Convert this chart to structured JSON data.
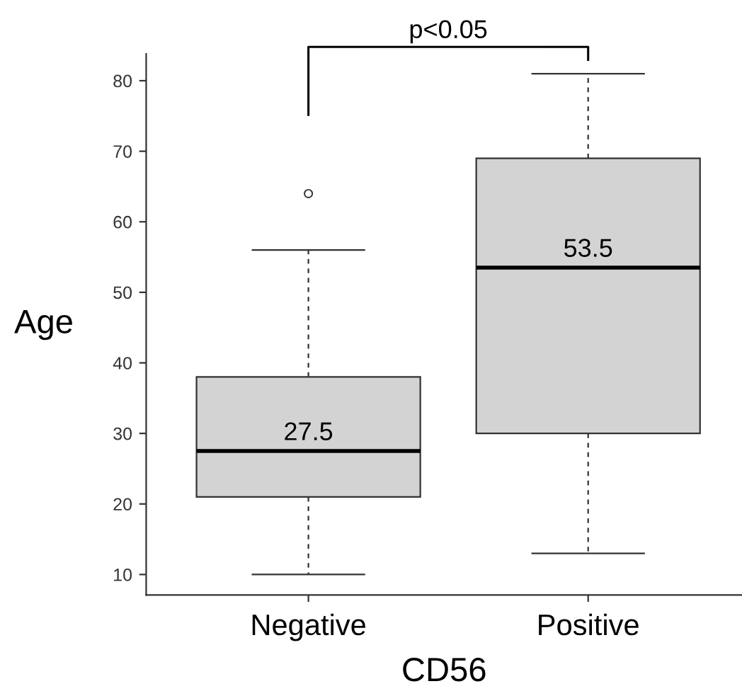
{
  "chart_data": {
    "type": "box",
    "xlabel": "CD56",
    "ylabel": "Age",
    "categories": [
      "Negative",
      "Positive"
    ],
    "boxes": [
      {
        "low": 10,
        "q1": 21,
        "median": 27.5,
        "q3": 38,
        "high": 56,
        "outliers": [
          64
        ]
      },
      {
        "low": 13,
        "q1": 30,
        "median": 53.5,
        "q3": 69,
        "high": 81
      }
    ],
    "color": "#d3d3d3",
    "ylim": [
      7.1,
      83.8
    ],
    "yticks": [
      10,
      20,
      30,
      40,
      50,
      60,
      70,
      80
    ],
    "grid": false,
    "annotations": [
      {
        "text": "27.5",
        "x": "Negative",
        "y": 27.5
      },
      {
        "text": "53.5",
        "x": "Positive",
        "y": 53.5
      },
      "p<0.05"
    ]
  }
}
